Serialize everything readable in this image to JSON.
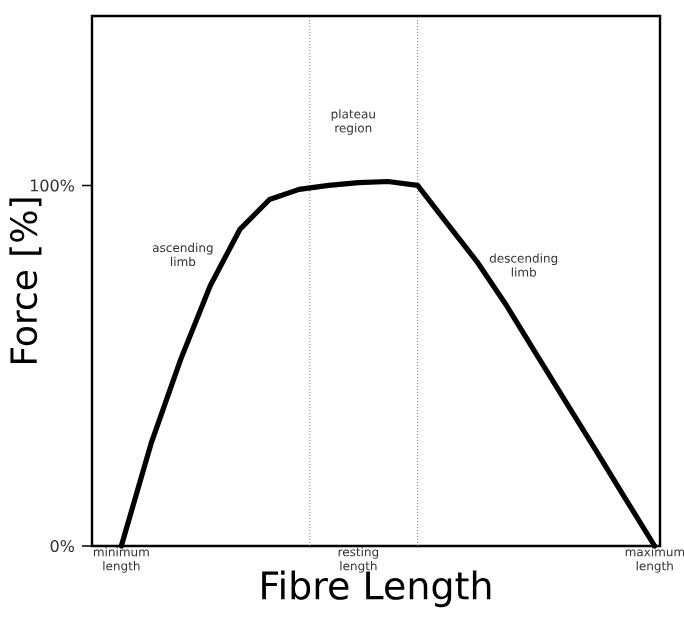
{
  "chart_data": {
    "type": "line",
    "xlabel": "Fibre Length",
    "ylabel": "Force [%]",
    "categories": [
      "minimum length",
      null,
      null,
      null,
      null,
      null,
      null,
      null,
      "resting length",
      null,
      null,
      null,
      null,
      null,
      null,
      null,
      null,
      null,
      "maximum length"
    ],
    "series": [
      {
        "color": "#000000",
        "values": [
          0,
          28.3,
          51.7,
          72.2,
          87.8,
          96.1,
          98.9,
          100,
          100.8,
          101.1,
          100,
          89.4,
          78.9,
          66.7,
          53.3,
          40,
          26.7,
          13.3,
          0
        ]
      }
    ],
    "ylim": [
      0,
      147
    ],
    "yticks": [
      {
        "value": 0,
        "label": "0%"
      },
      {
        "value": 100,
        "label": "100%"
      }
    ],
    "annotations": [
      "plateau region",
      "ascending limb",
      "descending limb"
    ]
  }
}
